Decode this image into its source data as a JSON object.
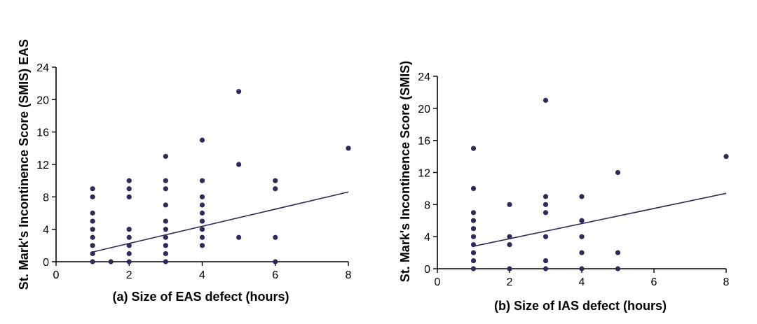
{
  "chart_data": [
    {
      "type": "scatter",
      "xlabel": "(a) Size of EAS defect (hours)",
      "ylabel": "St. Mark's Incontinence Score (SMIS) EAS",
      "xlim": [
        0,
        8
      ],
      "ylim": [
        0,
        24
      ],
      "xticks": [
        "0",
        "2",
        "4",
        "6",
        "8"
      ],
      "yticks": [
        "0",
        "4",
        "8",
        "12",
        "16",
        "20",
        "24"
      ],
      "grid": false,
      "point_color": "#2e2a5c",
      "line_color": "#2e2a5c",
      "points": [
        [
          1,
          0
        ],
        [
          1,
          1
        ],
        [
          1,
          2
        ],
        [
          1,
          3
        ],
        [
          1,
          4
        ],
        [
          1,
          5
        ],
        [
          1,
          6
        ],
        [
          1,
          8
        ],
        [
          1,
          9
        ],
        [
          1.5,
          0
        ],
        [
          2,
          0
        ],
        [
          2,
          1
        ],
        [
          2,
          2
        ],
        [
          2,
          3
        ],
        [
          2,
          4
        ],
        [
          2,
          8
        ],
        [
          2,
          9
        ],
        [
          2,
          10
        ],
        [
          3,
          0
        ],
        [
          3,
          1
        ],
        [
          3,
          2
        ],
        [
          3,
          3
        ],
        [
          3,
          4
        ],
        [
          3,
          5
        ],
        [
          3,
          7
        ],
        [
          3,
          9
        ],
        [
          3,
          10
        ],
        [
          3,
          13
        ],
        [
          4,
          2
        ],
        [
          4,
          3
        ],
        [
          4,
          4
        ],
        [
          4,
          5
        ],
        [
          4,
          6
        ],
        [
          4,
          7
        ],
        [
          4,
          8
        ],
        [
          4,
          10
        ],
        [
          4,
          15
        ],
        [
          5,
          3
        ],
        [
          5,
          12
        ],
        [
          5,
          21
        ],
        [
          6,
          0
        ],
        [
          6,
          3
        ],
        [
          6,
          9
        ],
        [
          6,
          10
        ],
        [
          8,
          14
        ]
      ],
      "trendline": [
        [
          1,
          1.2
        ],
        [
          8,
          8.6
        ]
      ]
    },
    {
      "type": "scatter",
      "xlabel": "(b) Size of IAS defect (hours)",
      "ylabel": "St. Mark's Incontinence Score (SMIS)",
      "xlim": [
        0,
        8
      ],
      "ylim": [
        0,
        24
      ],
      "xticks": [
        "0",
        "2",
        "4",
        "6",
        "8"
      ],
      "yticks": [
        "0",
        "4",
        "8",
        "12",
        "16",
        "20",
        "24"
      ],
      "grid": false,
      "point_color": "#2e2a5c",
      "line_color": "#2e2a5c",
      "points": [
        [
          1,
          0
        ],
        [
          1,
          1
        ],
        [
          1,
          2
        ],
        [
          1,
          3
        ],
        [
          1,
          4
        ],
        [
          1,
          5
        ],
        [
          1,
          6
        ],
        [
          1,
          7
        ],
        [
          1,
          10
        ],
        [
          1,
          15
        ],
        [
          2,
          0
        ],
        [
          2,
          3
        ],
        [
          2,
          4
        ],
        [
          2,
          8
        ],
        [
          3,
          0
        ],
        [
          3,
          1
        ],
        [
          3,
          4
        ],
        [
          3,
          7
        ],
        [
          3,
          8
        ],
        [
          3,
          9
        ],
        [
          3,
          21
        ],
        [
          4,
          0
        ],
        [
          4,
          2
        ],
        [
          4,
          4
        ],
        [
          4,
          6
        ],
        [
          4,
          9
        ],
        [
          5,
          0
        ],
        [
          5,
          2
        ],
        [
          5,
          12
        ],
        [
          8,
          14
        ]
      ],
      "trendline": [
        [
          1,
          2.8
        ],
        [
          8,
          9.4
        ]
      ]
    }
  ]
}
